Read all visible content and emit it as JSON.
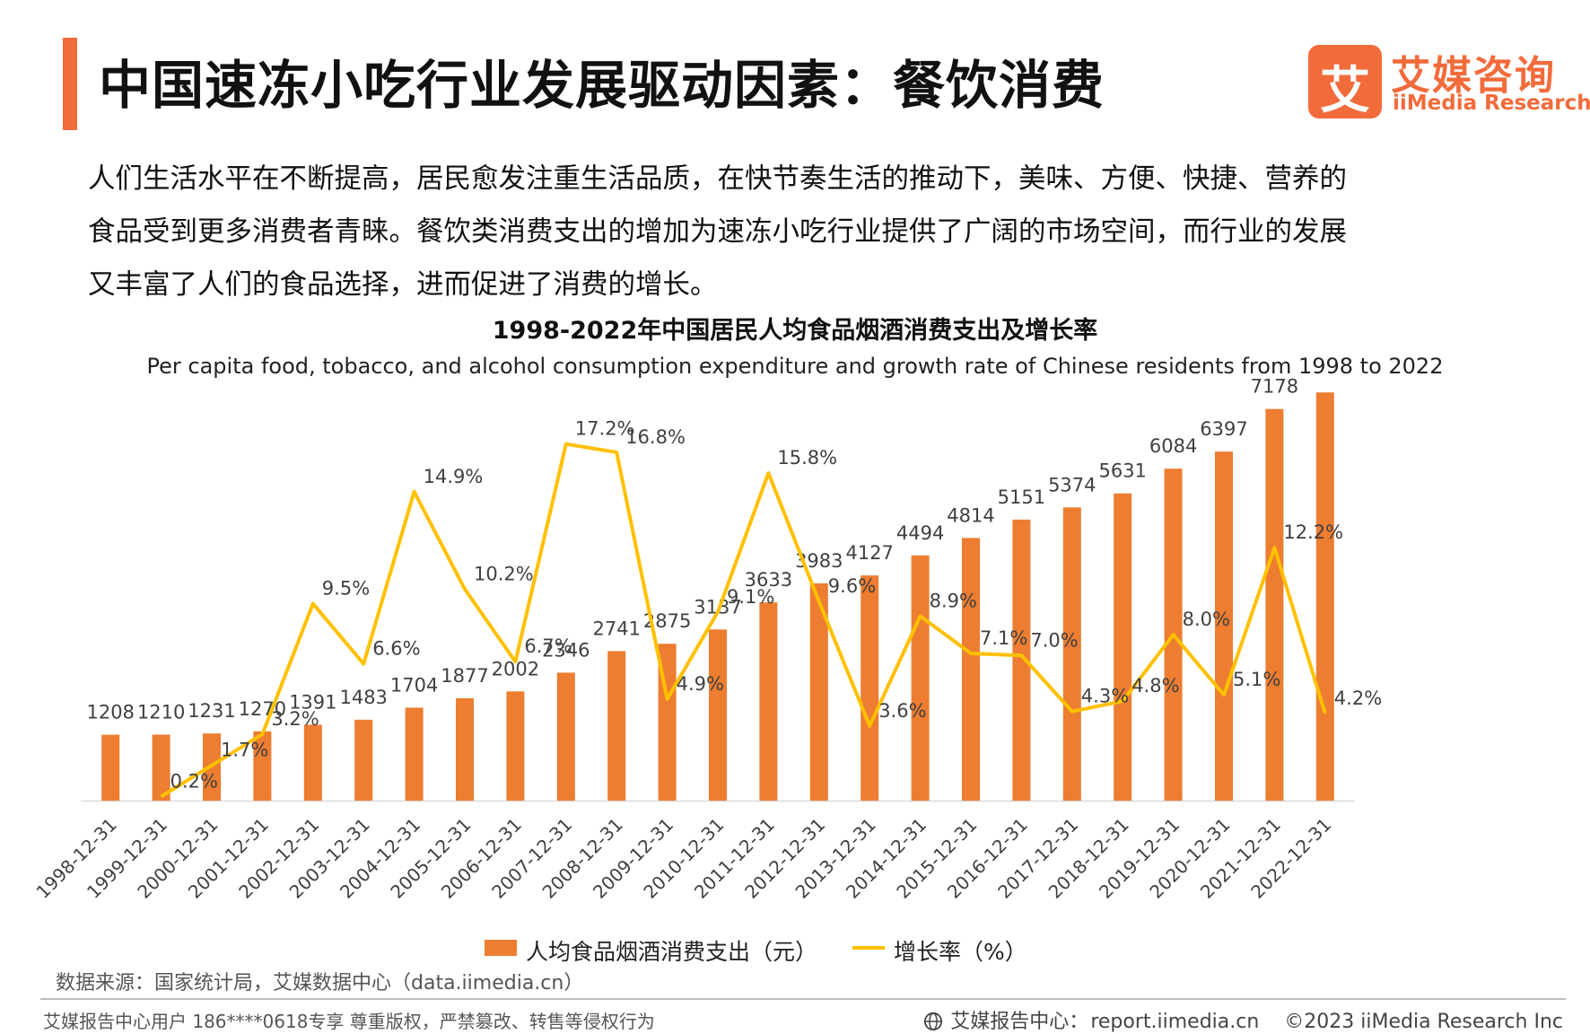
{
  "header": {
    "title": "中国速冻小吃行业发展驱动因素：餐饮消费",
    "logo_mark": "艾",
    "logo_cn": "艾媒咨询",
    "logo_en": "iiMedia Research"
  },
  "intro": {
    "lines": [
      "人们生活水平在不断提高，居民愈发注重生活品质，在快节奏生活的推动下，美味、方便、快捷、营养的",
      "食品受到更多消费者青睐。餐饮类消费支出的增加为速冻小吃行业提供了广阔的市场空间，而行业的发展",
      "又丰富了人们的食品选择，进而促进了消费的增长。"
    ]
  },
  "chart_data": {
    "type": "bar",
    "title": "1998-2022年中国居民人均食品烟酒消费支出及增长率",
    "subtitle": "Per capita food, tobacco, and alcohol consumption expenditure and growth rate of Chinese residents from 1998 to 2022",
    "categories": [
      "1998-12-31",
      "1999-12-31",
      "2000-12-31",
      "2001-12-31",
      "2002-12-31",
      "2003-12-31",
      "2004-12-31",
      "2005-12-31",
      "2006-12-31",
      "2007-12-31",
      "2008-12-31",
      "2009-12-31",
      "2010-12-31",
      "2011-12-31",
      "2012-12-31",
      "2013-12-31",
      "2014-12-31",
      "2015-12-31",
      "2016-12-31",
      "2017-12-31",
      "2018-12-31",
      "2019-12-31",
      "2020-12-31",
      "2021-12-31",
      "2022-12-31"
    ],
    "series": [
      {
        "name": "人均食品烟酒消费支出（元）",
        "type": "bar",
        "color": "#ed7d31",
        "values": [
          1208,
          1210,
          1231,
          1270,
          1391,
          1483,
          1704,
          1877,
          2002,
          2346,
          2741,
          2875,
          3137,
          3633,
          3983,
          4127,
          4494,
          4814,
          5151,
          5374,
          5631,
          6084,
          6397,
          7178,
          7481
        ],
        "ylim": [
          0,
          7600
        ]
      },
      {
        "name": "增长率（%）",
        "type": "line",
        "color": "#ffc000",
        "values": [
          null,
          0.2,
          1.7,
          3.2,
          9.5,
          6.6,
          14.9,
          10.2,
          6.7,
          17.2,
          16.8,
          4.9,
          9.1,
          15.8,
          9.6,
          3.6,
          8.9,
          7.1,
          7.0,
          4.3,
          4.8,
          8.0,
          5.1,
          12.2,
          4.2
        ],
        "labels": [
          "",
          "0.2%",
          "1.7%",
          "3.2%",
          "9.5%",
          "6.6%",
          "14.9%",
          "10.2%",
          "6.7%",
          "17.2%",
          "16.8%",
          "4.9%",
          "9.1%",
          "15.8%",
          "9.6%",
          "3.6%",
          "8.9%",
          "7.1%",
          "7.0%",
          "4.3%",
          "4.8%",
          "8.0%",
          "5.1%",
          "12.2%",
          "4.2%"
        ],
        "ylim": [
          0,
          20
        ]
      }
    ],
    "legend_position": "bottom",
    "grid": false
  },
  "legend": {
    "bar_label": "人均食品烟酒消费支出（元）",
    "line_label": "增长率（%）"
  },
  "source": "数据来源：国家统计局，艾媒数据中心（data.iimedia.cn）",
  "footer": {
    "left": "艾媒报告中心用户 186****0618专享 尊重版权，严禁篡改、转售等侵权行为",
    "center_label": "艾媒报告中心：",
    "center_url": "report.iimedia.cn",
    "copyright": "©2023  iiMedia Research  Inc"
  }
}
